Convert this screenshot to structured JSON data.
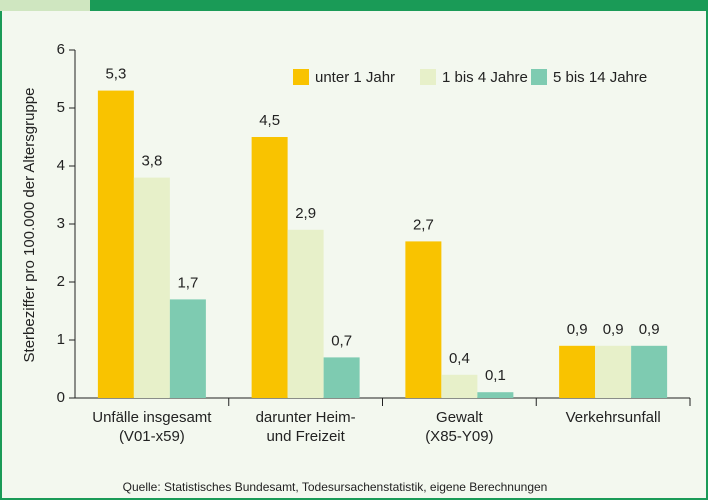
{
  "chart_data": {
    "type": "bar",
    "y_label": "Sterbeziffer pro 100.000 der Altersgruppe",
    "source": "Quelle: Statistisches Bundesamt, Todesursachenstatistik, eigene Berechnungen",
    "categories": [
      "Unfälle insgesamt\n(V01-x59)",
      "darunter Heim-\nund Freizeit",
      "Gewalt\n(X85-Y09)",
      "Verkehrsunfall"
    ],
    "series": [
      {
        "name": "unter 1 Jahr",
        "color": "#f9c300",
        "values": [
          5.3,
          4.5,
          2.7,
          0.9
        ],
        "value_labels": [
          "5,3",
          "4,5",
          "2,7",
          "0,9"
        ]
      },
      {
        "name": "1 bis 4 Jahre",
        "color": "#e7f0c9",
        "values": [
          3.8,
          2.9,
          0.4,
          0.9
        ],
        "value_labels": [
          "3,8",
          "2,9",
          "0,4",
          "0,9"
        ]
      },
      {
        "name": "5 bis 14 Jahre",
        "color": "#7ecbb1",
        "values": [
          1.7,
          0.7,
          0.1,
          0.9
        ],
        "value_labels": [
          "1,7",
          "0,7",
          "0,1",
          "0,9"
        ]
      }
    ],
    "ylim": [
      0,
      6
    ],
    "yticks": [
      0,
      1,
      2,
      3,
      4,
      5,
      6
    ],
    "legend": "top-right"
  }
}
